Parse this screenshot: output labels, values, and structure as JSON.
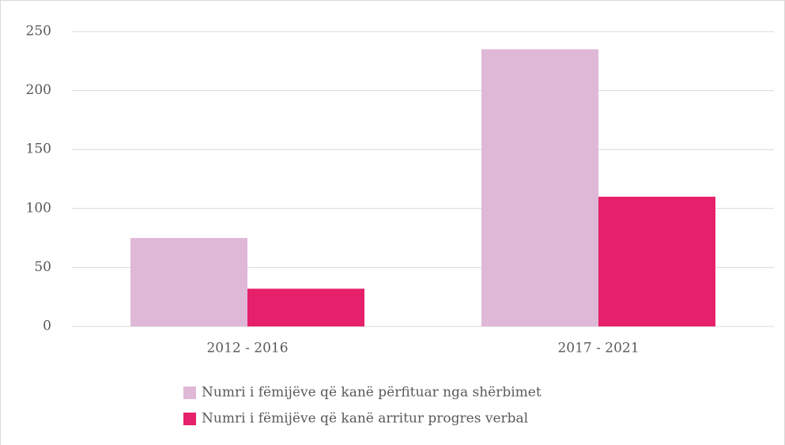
{
  "chart_data": {
    "type": "bar",
    "categories": [
      "2012 - 2016",
      "2017 - 2021"
    ],
    "series": [
      {
        "name": "Numri i fëmijëve që kanë përfituar nga shërbimet",
        "color": "#dfb8d8",
        "values": [
          75,
          235
        ]
      },
      {
        "name": "Numri i fëmijëve që kanë arritur progres verbal",
        "color": "#e6206a",
        "values": [
          32,
          110
        ]
      }
    ],
    "ylim": [
      0,
      250
    ],
    "yticks": [
      0,
      50,
      100,
      150,
      200,
      250
    ],
    "grid": true,
    "legend": "bottom"
  }
}
